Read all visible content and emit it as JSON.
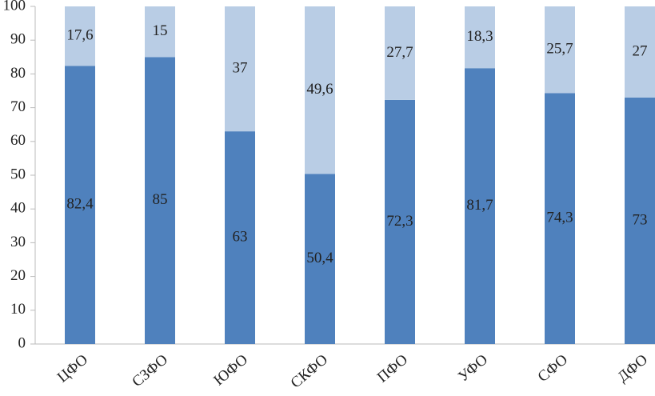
{
  "chart_data": {
    "type": "stacked_bar",
    "categories": [
      "ЦФО",
      "СЗФО",
      "ЮФО",
      "СКФО",
      "ПФО",
      "УФО",
      "СФО",
      "ДФО"
    ],
    "series": [
      {
        "color": "#4f81bd",
        "values": [
          82.4,
          85,
          63,
          50.4,
          72.3,
          81.7,
          74.3,
          73
        ],
        "value_labels": [
          "82,4",
          "85",
          "63",
          "50,4",
          "72,3",
          "81,7",
          "74,3",
          "73"
        ]
      },
      {
        "color": "#b9cde5",
        "values": [
          17.6,
          15,
          37,
          49.6,
          27.7,
          18.3,
          25.7,
          27
        ],
        "value_labels": [
          "17,6",
          "15",
          "37",
          "49,6",
          "27,7",
          "18,3",
          "25,7",
          "27"
        ]
      }
    ],
    "ylim": [
      0,
      100
    ],
    "yticks": [
      0,
      10,
      20,
      30,
      40,
      50,
      60,
      70,
      80,
      90,
      100
    ],
    "grid": false
  }
}
